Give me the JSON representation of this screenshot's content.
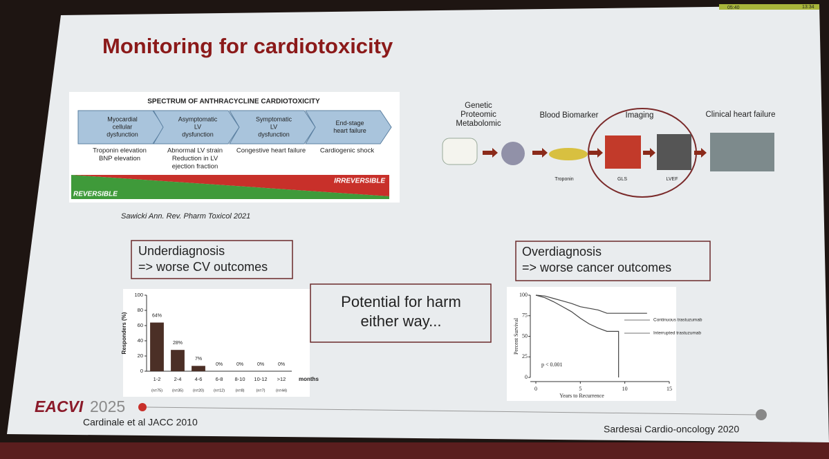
{
  "status": {
    "timer": "05:40",
    "clock": "13:34"
  },
  "slide": {
    "title": "Monitoring for cardiotoxicity",
    "spectrum": {
      "title": "SPECTRUM OF ANTHRACYCLINE CARDIOTOXICITY",
      "stages": [
        {
          "label": [
            "Myocardial",
            "cellular",
            "dysfunction"
          ],
          "note": [
            "Troponin elevation",
            "BNP elevation"
          ]
        },
        {
          "label": [
            "Asymptomatic",
            "LV",
            "dysfunction"
          ],
          "note": [
            "Abnormal LV strain",
            "Reduction in LV",
            "ejection fraction"
          ]
        },
        {
          "label": [
            "Symptomatic",
            "LV",
            "dysfunction"
          ],
          "note": [
            "Congestive heart failure"
          ]
        },
        {
          "label": [
            "End-stage",
            "heart failure"
          ],
          "note": [
            "Cardiogenic shock"
          ]
        }
      ],
      "reversible": "REVERSIBLE",
      "irreversible": "IRREVERSIBLE",
      "citation": "Sawicki Ann. Rev. Pharm Toxicol 2021"
    },
    "pipeline": {
      "omics": [
        "Genetic",
        "Proteomic",
        "Metabolomic"
      ],
      "biomarker": "Blood Biomarker",
      "imaging": "Imaging",
      "clinical": "Clinical heart failure",
      "troponin": "Troponin",
      "gls": "GLS",
      "lvef": "LVEF"
    },
    "underdiagnosis": [
      "Underdiagnosis",
      "=> worse CV outcomes"
    ],
    "harm": [
      "Potential for harm",
      "either way..."
    ],
    "overdiagnosis": [
      "Overdiagnosis",
      "=> worse cancer outcomes"
    ],
    "footer": {
      "logo": "EACVI",
      "year": "2025",
      "left_citation": "Cardinale et al JACC 2010",
      "right_citation": "Sardesai Cardio-oncology 2020"
    }
  },
  "chart_data": [
    {
      "type": "bar",
      "categories": [
        "1-2",
        "2-4",
        "4-6",
        "6-8",
        "8-10",
        "10-12",
        ">12"
      ],
      "category_notes": [
        "(n=75)",
        "(n=35)",
        "(n=20)",
        "(n=12)",
        "(n=8)",
        "(n=7)",
        "(n=44)"
      ],
      "values": [
        64,
        28,
        7,
        0,
        0,
        0,
        0
      ],
      "value_labels": [
        "64%",
        "28%",
        "7%",
        "0%",
        "0%",
        "0%",
        "0%"
      ],
      "y_label": "Responders (%)",
      "x_label": "months",
      "ylim": [
        0,
        100
      ],
      "yticks": [
        0,
        20,
        40,
        60,
        80,
        100
      ],
      "color": "#4b2f26"
    },
    {
      "type": "line",
      "y_label": "Percent Survival",
      "x_label": "Years to Recurrence",
      "annotation": "p < 0.001",
      "xlim": [
        0,
        15
      ],
      "ylim": [
        0,
        100
      ],
      "xticks": [
        0,
        5,
        10,
        15
      ],
      "yticks": [
        0,
        25,
        50,
        75,
        100
      ],
      "series": [
        {
          "name": "Continuous trastuzumab",
          "color": "#444444",
          "x": [
            0,
            1,
            2,
            3,
            4,
            5,
            6,
            7,
            8,
            10,
            12.5
          ],
          "values": [
            100,
            99,
            96,
            93,
            90,
            86,
            84,
            82,
            78,
            78,
            78
          ]
        },
        {
          "name": "Interrupted trastuzumab",
          "color": "#444444",
          "x": [
            0,
            1,
            2,
            3,
            4,
            5,
            6,
            7,
            8,
            9.3,
            9.3
          ],
          "values": [
            100,
            97,
            92,
            86,
            80,
            72,
            65,
            60,
            56,
            56,
            0
          ]
        }
      ]
    }
  ]
}
